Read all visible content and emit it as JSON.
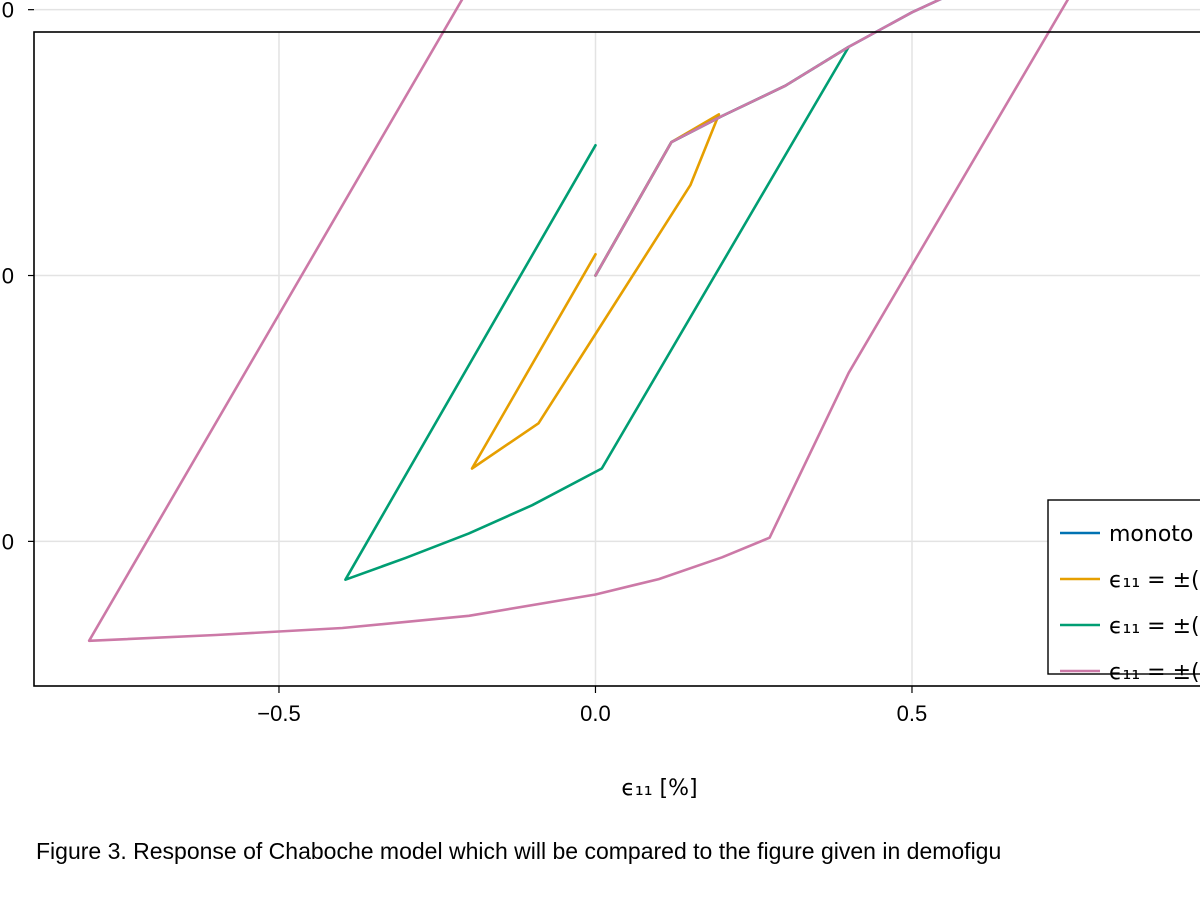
{
  "caption": "Figure 3. Response of Chaboche model which will be compared to the figure given in demofigu",
  "chart_data": {
    "type": "line",
    "title": "",
    "xlabel": "ϵ₁₁ [%]",
    "ylabel": "",
    "xlim": [
      -0.887,
      0.955
    ],
    "ylim": [
      -0.772,
      0.458
    ],
    "x_ticks": [
      -0.5,
      0.0,
      0.5
    ],
    "x_tick_labels": [
      "−0.5",
      "0.0",
      "0.5"
    ],
    "y_ticks": [
      -0.5,
      0.0,
      0.5
    ],
    "y_tick_labels": [
      "0",
      "0",
      "0"
    ],
    "grid": true,
    "legend_position": "bottom-right",
    "series": [
      {
        "name": "monoto",
        "color": "#0072b2",
        "x": [
          0.0,
          0.12,
          0.2,
          0.3,
          0.4,
          0.5,
          0.6,
          0.7,
          0.8,
          0.88,
          0.955
        ],
        "y": [
          0.0,
          0.251,
          0.3,
          0.357,
          0.43,
          0.495,
          0.55,
          0.595,
          0.628,
          0.645,
          0.67
        ]
      },
      {
        "name": "ϵ₁₁ = ±(",
        "color": "#e69f00",
        "x": [
          0.0,
          0.12,
          0.195,
          0.15,
          0.0,
          -0.09,
          -0.195,
          0.0
        ],
        "y": [
          0.0,
          0.251,
          0.303,
          0.17,
          -0.11,
          -0.278,
          -0.363,
          0.04
        ]
      },
      {
        "name": "ϵ₁₁ = ±(",
        "color": "#009e73",
        "x": [
          0.0,
          0.12,
          0.2,
          0.3,
          0.4,
          0.01,
          -0.1,
          -0.2,
          -0.3,
          -0.395,
          0.0
        ],
        "y": [
          0.0,
          0.251,
          0.3,
          0.357,
          0.43,
          -0.363,
          -0.432,
          -0.485,
          -0.531,
          -0.572,
          0.245
        ]
      },
      {
        "name": "ϵ₁₁ = ±(",
        "color": "#cc79a7",
        "x": [
          0.0,
          0.12,
          0.2,
          0.3,
          0.4,
          0.5,
          0.6,
          0.7,
          0.8,
          0.4,
          0.275,
          0.2,
          0.1,
          0.0,
          -0.2,
          -0.4,
          -0.6,
          -0.8,
          -0.177,
          -0.1,
          0.0
        ],
        "y": [
          0.0,
          0.251,
          0.3,
          0.357,
          0.43,
          0.495,
          0.55,
          0.595,
          0.628,
          -0.183,
          -0.493,
          -0.53,
          -0.571,
          -0.6,
          -0.64,
          -0.663,
          -0.676,
          -0.687,
          0.588,
          0.625,
          0.655
        ]
      }
    ]
  }
}
